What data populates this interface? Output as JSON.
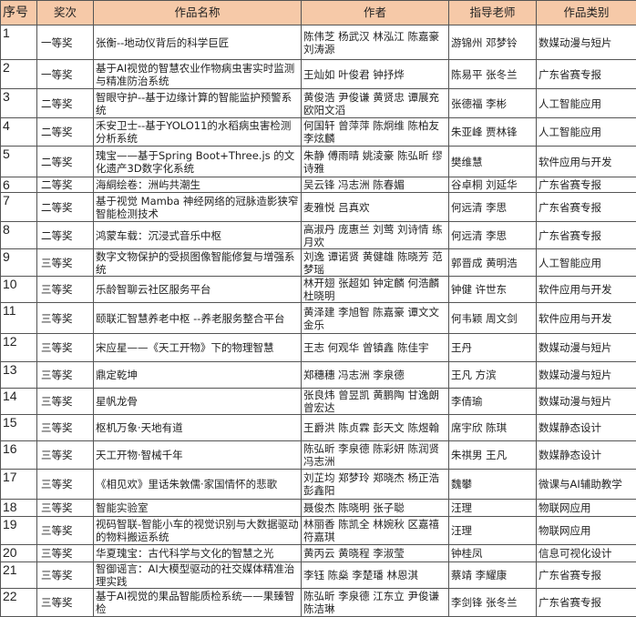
{
  "header": {
    "no": "序号",
    "award": "奖次",
    "title": "作品名称",
    "authors": "作者",
    "advisors": "指导老师",
    "category": "作品类别"
  },
  "rows": [
    {
      "no": "1",
      "award": "一等奖",
      "title": "张衡--地动仪背后的科学巨匠",
      "authors": "陈伟芝  杨武汉  林泓江 陈嘉豪  刘涛源",
      "advisors": "游锦州  邓梦铃",
      "category": "数媒动漫与短片"
    },
    {
      "no": "2",
      "award": "一等奖",
      "title": "基于AI视觉的智慧农业作物病虫害实时监测与精准防治系统",
      "authors": "王灿如  叶俊君  钟抒烨",
      "advisors": "陈易平  张冬兰",
      "category": "广东省赛专报"
    },
    {
      "no": "3",
      "award": "二等奖",
      "title": "智眼守护--基于边缘计算的智能监护预警系统",
      "authors": "黄俊浩  尹俊谦  黄贤忠 谭展充  欧阳文滔",
      "advisors": "张德福  李彬",
      "category": "人工智能应用"
    },
    {
      "no": "4",
      "award": "二等奖",
      "title": "禾安卫士--基于YOLO11的水稻病虫害检测分析系统",
      "authors": "何国轩  曾萍萍  陈炯维 陈柏友  李炫麟",
      "advisors": "朱亚峰  贾林锋",
      "category": "人工智能应用"
    },
    {
      "no": "5",
      "award": "二等奖",
      "title": "瑰宝——基于Spring Boot+Three.js 的文化遗产3D数字化系统",
      "authors": "朱静  傅雨晴  姚淩豪 陈弘昕  缪诗雅",
      "advisors": "樊维慧",
      "category": "软件应用与开发"
    },
    {
      "no": "6",
      "award": "二等奖",
      "title": "海絧绘卷：洲屿共潮生",
      "authors": "吴云锋  冯志洲  陈春媚",
      "advisors": "谷卓桐  刘延华",
      "category": "广东省赛专报"
    },
    {
      "no": "7",
      "award": "二等奖",
      "title": "基于视觉 Mamba 神经网络的冠脉造影狭窄智能检测技术",
      "authors": "麦雅悦  吕真欢",
      "advisors": "何远清  李思",
      "category": "广东省赛专报"
    },
    {
      "no": "8",
      "award": "二等奖",
      "title": "鸿蒙车载：沉浸式音乐中枢",
      "authors": "高淑丹  庞惠兰  刘莺 刘诗情  练月欢",
      "advisors": "何远清  李思",
      "category": "广东省赛专报"
    },
    {
      "no": "9",
      "award": "三等奖",
      "title": "数字文物保护的受损图像智能修复与增强系统",
      "authors": "刘逸  谭诺贤  黄健雄 陈晓芳  范梦瑶",
      "advisors": "郭晋成  黄明浩",
      "category": "人工智能应用"
    },
    {
      "no": "10",
      "award": "三等奖",
      "title": "乐龄智聊云社区服务平台",
      "authors": "林开翅  张超如  钟定麟 何浩麟  杜晓明",
      "advisors": "钟健  许世东",
      "category": "软件应用与开发"
    },
    {
      "no": "11",
      "award": "三等奖",
      "title": "颐联汇智慧养老中枢 --养老服务整合平台",
      "authors": "黄泽建  李旭智  陈嘉豪 谭文文  金乐",
      "advisors": "何韦颖  周文剑",
      "category": "软件应用与开发"
    },
    {
      "no": "12",
      "award": "三等奖",
      "title": "宋应星——《天工开物》下的物理智慧",
      "authors": "王志  何观华  曾镇鑫 陈佳宇",
      "advisors": "王丹",
      "category": "数媒动漫与短片"
    },
    {
      "no": "13",
      "award": "三等奖",
      "title": "鼎定乾坤",
      "authors": "郑穗穗  冯志洲  李泉德",
      "advisors": "王凡  方滨",
      "category": "数媒动漫与短片"
    },
    {
      "no": "14",
      "award": "三等奖",
      "title": "星帆龙骨",
      "authors": "张良炜  曾昱凯  黄鹏陶 甘逸朗  曾宏达",
      "advisors": "李倩瑜",
      "category": "数媒动漫与短片"
    },
    {
      "no": "15",
      "award": "三等奖",
      "title": "枢机万象·天地有道",
      "authors": "王爵洪  陈贞霖  彭天文 陈煜翰",
      "advisors": "席宇欣  陈琪",
      "category": "数媒静态设计"
    },
    {
      "no": "16",
      "award": "三等奖",
      "title": "天工开物·智械千年",
      "authors": "陈弘昕  李泉德  陈彩妍 陈润贤  冯志洲",
      "advisors": "朱祺男  王凡",
      "category": "数媒静态设计"
    },
    {
      "no": "17",
      "award": "三等奖",
      "title": "《相见欢》里话朱敦儒·家国情怀的悲歌",
      "authors": "刘芷均  郑梦玲  郑晓杰 杨正浩  彭鑫阳",
      "advisors": "魏攀",
      "category": "微课与AI辅助教学"
    },
    {
      "no": "18",
      "award": "三等奖",
      "title": "智能实验室",
      "authors": "聂俊杰  陈晓明  张子聪",
      "advisors": "汪理",
      "category": "物联网应用"
    },
    {
      "no": "19",
      "award": "三等奖",
      "title": "视码智联-智能小车的视觉识别与大数据驱动的物料搬运系统",
      "authors": "林丽香  陈凯全  林婉秋 区嘉禧  符嘉琪",
      "advisors": "汪理",
      "category": "物联网应用"
    },
    {
      "no": "20",
      "award": "三等奖",
      "title": "华夏瑰宝：古代科学与文化的智慧之光",
      "authors": "黄丙云  黄晓程  李淑莹",
      "advisors": "钟桂凤",
      "category": "信息可视化设计"
    },
    {
      "no": "21",
      "award": "三等奖",
      "title": "智御谣言：AI大模型驱动的社交媒体精准治理实践",
      "authors": "李钰  陈燊  李楚璠  林恩淇",
      "advisors": "蔡靖  李耀康",
      "category": "广东省赛专报"
    },
    {
      "no": "22",
      "award": "三等奖",
      "title": "基于AI视觉的果品智能质检系统——果臻智检",
      "authors": "陈弘昕  李泉德  江东立 尹俊谦  陈洁琳",
      "advisors": "李剑锋  张冬兰",
      "category": "广东省赛专报"
    }
  ]
}
